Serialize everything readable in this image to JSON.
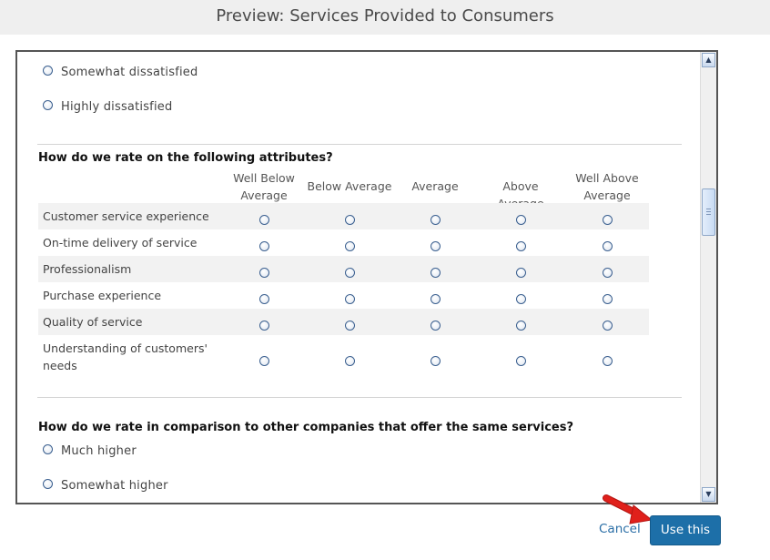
{
  "dialog": {
    "title": "Preview: Services Provided to Consumers"
  },
  "prev_question": {
    "options": [
      "Somewhat dissatisfied",
      "Highly dissatisfied"
    ]
  },
  "matrix_question": {
    "title": "How do we rate on the following attributes?",
    "columns": [
      [
        "Well Below",
        "Average"
      ],
      [
        "Below Average"
      ],
      [
        "Average"
      ],
      [
        "Above Average"
      ],
      [
        "Well Above",
        "Average"
      ]
    ],
    "rows": [
      [
        "Customer service experience"
      ],
      [
        "On-time delivery of service"
      ],
      [
        "Professionalism"
      ],
      [
        "Purchase experience"
      ],
      [
        "Quality of service"
      ],
      [
        "Understanding of customers'",
        "needs"
      ]
    ]
  },
  "comparison_question": {
    "title": "How do we rate in comparison to other companies that offer the same services?",
    "options": [
      "Much higher",
      "Somewhat higher"
    ]
  },
  "footer": {
    "cancel_label": "Cancel",
    "use_label": "Use this"
  },
  "colors": {
    "primary_button": "#1d6fa8",
    "link": "#2a6ea6",
    "annotation_arrow": "#e0201b"
  }
}
